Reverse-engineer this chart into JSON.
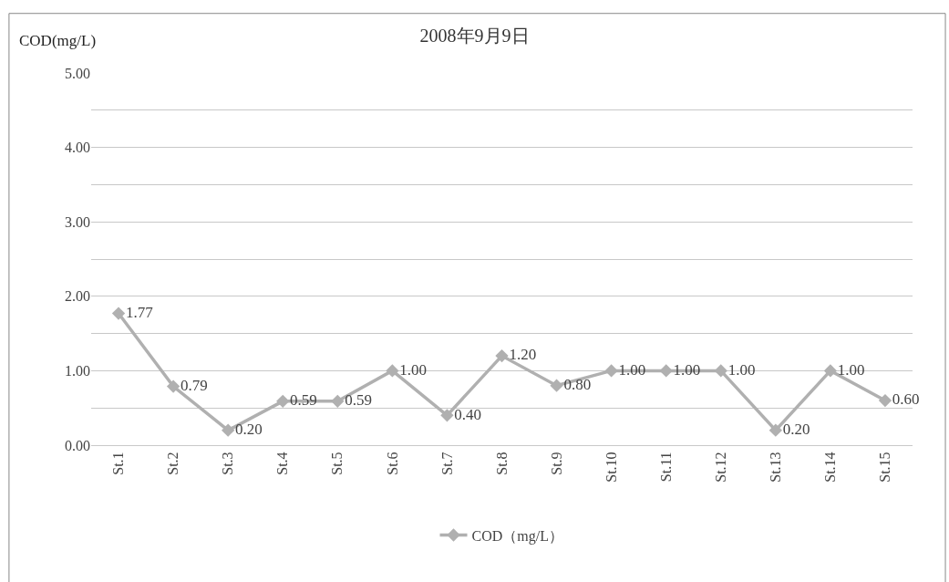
{
  "chart_data": {
    "type": "line",
    "title": "2008年9月9日",
    "ylabel": "COD(mg/L)",
    "categories": [
      "St.1",
      "St.2",
      "St.3",
      "St.4",
      "St.5",
      "St.6",
      "St.7",
      "St.8",
      "St.9",
      "St.10",
      "St.11",
      "St.12",
      "St.13",
      "St.14",
      "St.15"
    ],
    "series": [
      {
        "name": "COD（mg/L）",
        "color": "#b0b0b0",
        "values": [
          1.77,
          0.79,
          0.2,
          0.59,
          0.59,
          1.0,
          0.4,
          1.2,
          0.8,
          1.0,
          1.0,
          1.0,
          0.2,
          1.0,
          0.6
        ],
        "value_labels": [
          "1.77",
          "0.79",
          "0.20",
          "0.59",
          "0.59",
          "1.00",
          "0.40",
          "1.20",
          "0.80",
          "1.00",
          "1.00",
          "1.00",
          "0.20",
          "1.00",
          "0.60"
        ]
      }
    ],
    "ylim": [
      0,
      5
    ],
    "yticks": [
      {
        "value": 0,
        "label": "0.00"
      },
      {
        "value": 0.5,
        "label": null
      },
      {
        "value": 1,
        "label": "1.00"
      },
      {
        "value": 1.5,
        "label": null
      },
      {
        "value": 2,
        "label": "2.00"
      },
      {
        "value": 2.5,
        "label": null
      },
      {
        "value": 3,
        "label": "3.00"
      },
      {
        "value": 3.5,
        "label": null
      },
      {
        "value": 4,
        "label": "4.00"
      },
      {
        "value": 4.5,
        "label": null
      },
      {
        "value": 5,
        "label": "5.00"
      }
    ],
    "grid": "y",
    "legend": "bottom",
    "marker": "diamond",
    "line_style": "solid"
  }
}
